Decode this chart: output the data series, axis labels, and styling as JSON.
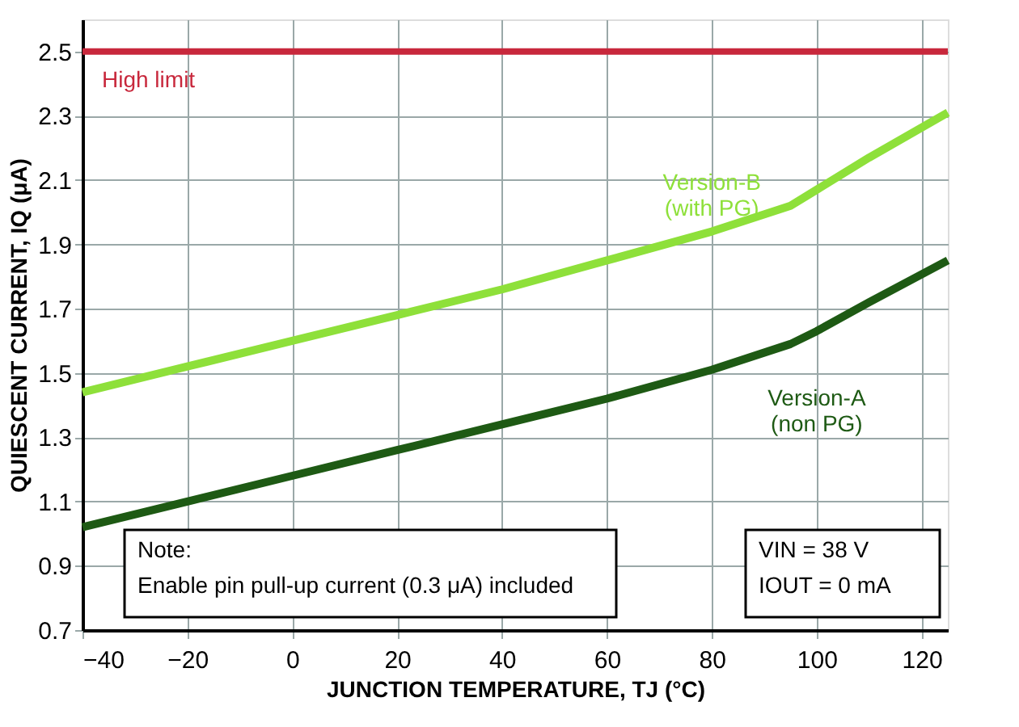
{
  "chart_data": {
    "type": "line",
    "xlabel": "JUNCTION TEMPERATURE, TJ (°C)",
    "ylabel": "QUIESCENT CURRENT, IQ (μA)",
    "x": [
      -40,
      -20,
      0,
      20,
      40,
      60,
      80,
      95,
      100,
      110,
      125
    ],
    "series": [
      {
        "name": "Version-B\n(with PG)",
        "color": "#8ee03a",
        "values": [
          1.44,
          1.52,
          1.6,
          1.68,
          1.76,
          1.85,
          1.94,
          2.02,
          2.07,
          2.17,
          2.31
        ]
      },
      {
        "name": "Version-A\n(non PG)",
        "color": "#1e5a14",
        "values": [
          1.02,
          1.1,
          1.18,
          1.26,
          1.34,
          1.42,
          1.51,
          1.59,
          1.63,
          1.72,
          1.85
        ]
      }
    ],
    "xlim": [
      -40,
      125
    ],
    "xticks": [
      -40,
      -20,
      0,
      20,
      40,
      60,
      80,
      100,
      120
    ],
    "ylim": [
      0.7,
      2.6
    ],
    "yticks": [
      0.7,
      0.9,
      1.1,
      1.3,
      1.5,
      1.7,
      1.9,
      2.1,
      2.3,
      2.5
    ],
    "ref_lines": [
      {
        "axis": "y",
        "value": 2.5,
        "label": "High limit",
        "color": "#c8283c"
      }
    ],
    "annotations": [
      "Note:\nEnable pin pull-up current (0.3 μA) included",
      "VIN = 38 V\nIOUT = 0 mA"
    ],
    "grid": true,
    "marker": "none",
    "line_style": "solid"
  }
}
